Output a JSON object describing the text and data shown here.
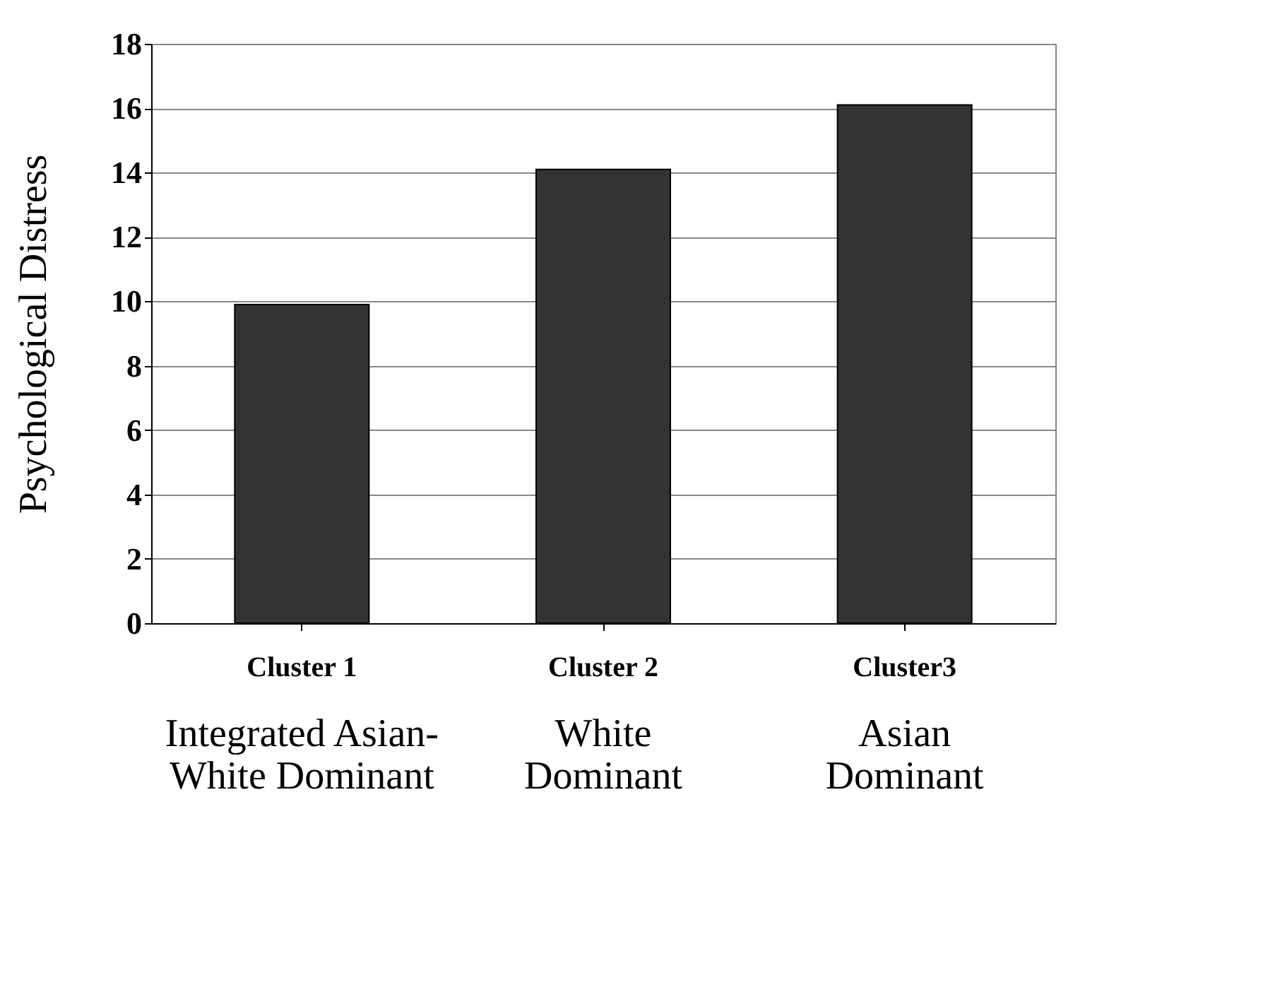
{
  "chart_data": {
    "type": "bar",
    "ylabel": "Psychological Distress",
    "categories": [
      "Cluster 1",
      "Cluster 2",
      "Cluster3"
    ],
    "values": [
      9.9,
      14.1,
      16.1
    ],
    "color": "#333333",
    "ylim": [
      0,
      18
    ],
    "yticks": [
      0,
      2,
      4,
      6,
      8,
      10,
      12,
      14,
      16,
      18
    ],
    "grid": "y",
    "annotations": [
      "Integrated Asian-\nWhite Dominant",
      "White\nDominant",
      "Asian\nDominant"
    ]
  }
}
